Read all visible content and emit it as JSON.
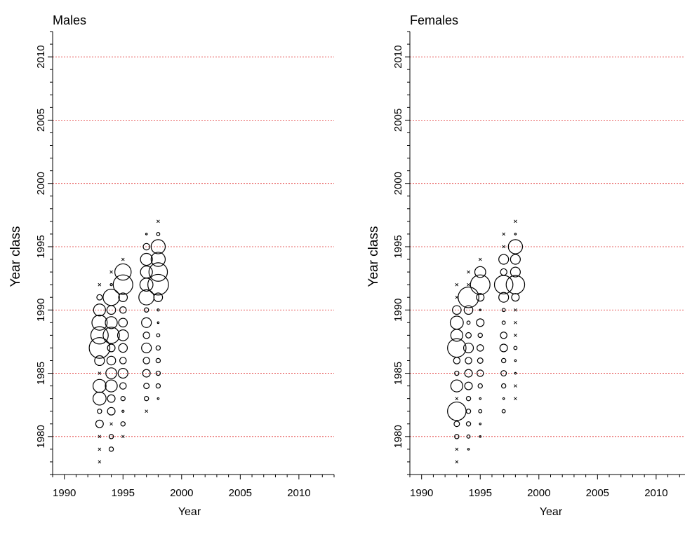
{
  "chart_data": [
    {
      "type": "scatter",
      "subtype": "bubble",
      "title": "Males",
      "xlabel": "Year",
      "ylabel": "Year class",
      "xlim": [
        1989,
        2013
      ],
      "ylim": [
        1977,
        2012
      ],
      "xticks": [
        1990,
        1995,
        2000,
        2005,
        2010
      ],
      "yticks": [
        1980,
        1985,
        1990,
        1995,
        2000,
        2005,
        2010
      ],
      "hlines": [
        1980,
        1985,
        1990,
        1995,
        2000,
        2005,
        2010
      ],
      "hline_color": "#e03030",
      "marker_note": "x = zero value",
      "points": [
        {
          "year": 1993,
          "yc": 1978,
          "size": 0
        },
        {
          "year": 1993,
          "yc": 1979,
          "size": 0
        },
        {
          "year": 1993,
          "yc": 1980,
          "size": 0
        },
        {
          "year": 1993,
          "yc": 1981,
          "size": 0.35
        },
        {
          "year": 1993,
          "yc": 1982,
          "size": 0.2
        },
        {
          "year": 1993,
          "yc": 1983,
          "size": 0.6
        },
        {
          "year": 1993,
          "yc": 1984,
          "size": 0.6
        },
        {
          "year": 1993,
          "yc": 1985,
          "size": 0
        },
        {
          "year": 1993,
          "yc": 1986,
          "size": 0.45
        },
        {
          "year": 1993,
          "yc": 1987,
          "size": 0.95
        },
        {
          "year": 1993,
          "yc": 1988,
          "size": 0.8
        },
        {
          "year": 1993,
          "yc": 1989,
          "size": 0.7
        },
        {
          "year": 1993,
          "yc": 1990,
          "size": 0.55
        },
        {
          "year": 1993,
          "yc": 1991,
          "size": 0.25
        },
        {
          "year": 1993,
          "yc": 1992,
          "size": 0
        },
        {
          "year": 1994,
          "yc": 1979,
          "size": 0.2
        },
        {
          "year": 1994,
          "yc": 1980,
          "size": 0.2
        },
        {
          "year": 1994,
          "yc": 1981,
          "size": 0
        },
        {
          "year": 1994,
          "yc": 1982,
          "size": 0.35
        },
        {
          "year": 1994,
          "yc": 1983,
          "size": 0.35
        },
        {
          "year": 1994,
          "yc": 1984,
          "size": 0.55
        },
        {
          "year": 1994,
          "yc": 1985,
          "size": 0.5
        },
        {
          "year": 1994,
          "yc": 1986,
          "size": 0.4
        },
        {
          "year": 1994,
          "yc": 1987,
          "size": 0.35
        },
        {
          "year": 1994,
          "yc": 1988,
          "size": 0.75
        },
        {
          "year": 1994,
          "yc": 1989,
          "size": 0.55
        },
        {
          "year": 1994,
          "yc": 1990,
          "size": 0.4
        },
        {
          "year": 1994,
          "yc": 1991,
          "size": 0.75
        },
        {
          "year": 1994,
          "yc": 1992,
          "size": 0.1
        },
        {
          "year": 1994,
          "yc": 1993,
          "size": 0
        },
        {
          "year": 1995,
          "yc": 1980,
          "size": 0
        },
        {
          "year": 1995,
          "yc": 1981,
          "size": 0.2
        },
        {
          "year": 1995,
          "yc": 1982,
          "size": 0.1
        },
        {
          "year": 1995,
          "yc": 1983,
          "size": 0.2
        },
        {
          "year": 1995,
          "yc": 1984,
          "size": 0.3
        },
        {
          "year": 1995,
          "yc": 1985,
          "size": 0.45
        },
        {
          "year": 1995,
          "yc": 1986,
          "size": 0.3
        },
        {
          "year": 1995,
          "yc": 1987,
          "size": 0.4
        },
        {
          "year": 1995,
          "yc": 1988,
          "size": 0.5
        },
        {
          "year": 1995,
          "yc": 1989,
          "size": 0.4
        },
        {
          "year": 1995,
          "yc": 1990,
          "size": 0.3
        },
        {
          "year": 1995,
          "yc": 1991,
          "size": 0.4
        },
        {
          "year": 1995,
          "yc": 1992,
          "size": 0.9
        },
        {
          "year": 1995,
          "yc": 1993,
          "size": 0.75
        },
        {
          "year": 1995,
          "yc": 1994,
          "size": 0
        },
        {
          "year": 1997,
          "yc": 1982,
          "size": 0
        },
        {
          "year": 1997,
          "yc": 1983,
          "size": 0.2
        },
        {
          "year": 1997,
          "yc": 1984,
          "size": 0.25
        },
        {
          "year": 1997,
          "yc": 1985,
          "size": 0.35
        },
        {
          "year": 1997,
          "yc": 1986,
          "size": 0.3
        },
        {
          "year": 1997,
          "yc": 1987,
          "size": 0.45
        },
        {
          "year": 1997,
          "yc": 1988,
          "size": 0.3
        },
        {
          "year": 1997,
          "yc": 1989,
          "size": 0.45
        },
        {
          "year": 1997,
          "yc": 1990,
          "size": 0.2
        },
        {
          "year": 1997,
          "yc": 1991,
          "size": 0.7
        },
        {
          "year": 1997,
          "yc": 1992,
          "size": 0.6
        },
        {
          "year": 1997,
          "yc": 1993,
          "size": 0.55
        },
        {
          "year": 1997,
          "yc": 1994,
          "size": 0.55
        },
        {
          "year": 1997,
          "yc": 1995,
          "size": 0.3
        },
        {
          "year": 1997,
          "yc": 1996,
          "size": 0.05
        },
        {
          "year": 1998,
          "yc": 1983,
          "size": 0.08
        },
        {
          "year": 1998,
          "yc": 1984,
          "size": 0.2
        },
        {
          "year": 1998,
          "yc": 1985,
          "size": 0.2
        },
        {
          "year": 1998,
          "yc": 1986,
          "size": 0.2
        },
        {
          "year": 1998,
          "yc": 1987,
          "size": 0.2
        },
        {
          "year": 1998,
          "yc": 1988,
          "size": 0.15
        },
        {
          "year": 1998,
          "yc": 1989,
          "size": 0.05
        },
        {
          "year": 1998,
          "yc": 1990,
          "size": 0.1
        },
        {
          "year": 1998,
          "yc": 1991,
          "size": 0.4
        },
        {
          "year": 1998,
          "yc": 1992,
          "size": 0.95
        },
        {
          "year": 1998,
          "yc": 1993,
          "size": 0.85
        },
        {
          "year": 1998,
          "yc": 1994,
          "size": 0.65
        },
        {
          "year": 1998,
          "yc": 1995,
          "size": 0.65
        },
        {
          "year": 1998,
          "yc": 1996,
          "size": 0.15
        },
        {
          "year": 1998,
          "yc": 1997,
          "size": 0
        }
      ]
    },
    {
      "type": "scatter",
      "subtype": "bubble",
      "title": "Females",
      "xlabel": "Year",
      "ylabel": "Year class",
      "xlim": [
        1989,
        2013
      ],
      "ylim": [
        1977,
        2012
      ],
      "xticks": [
        1990,
        1995,
        2000,
        2005,
        2010
      ],
      "yticks": [
        1980,
        1985,
        1990,
        1995,
        2000,
        2005,
        2010
      ],
      "hlines": [
        1980,
        1985,
        1990,
        1995,
        2000,
        2005,
        2010
      ],
      "hline_color": "#e03030",
      "marker_note": "x = zero value",
      "points": [
        {
          "year": 1993,
          "yc": 1978,
          "size": 0
        },
        {
          "year": 1993,
          "yc": 1979,
          "size": 0
        },
        {
          "year": 1993,
          "yc": 1980,
          "size": 0.2
        },
        {
          "year": 1993,
          "yc": 1981,
          "size": 0.25
        },
        {
          "year": 1993,
          "yc": 1982,
          "size": 0.85
        },
        {
          "year": 1993,
          "yc": 1983,
          "size": 0
        },
        {
          "year": 1993,
          "yc": 1984,
          "size": 0.55
        },
        {
          "year": 1993,
          "yc": 1985,
          "size": 0.2
        },
        {
          "year": 1993,
          "yc": 1986,
          "size": 0.3
        },
        {
          "year": 1993,
          "yc": 1987,
          "size": 0.85
        },
        {
          "year": 1993,
          "yc": 1988,
          "size": 0.55
        },
        {
          "year": 1993,
          "yc": 1989,
          "size": 0.6
        },
        {
          "year": 1993,
          "yc": 1990,
          "size": 0.4
        },
        {
          "year": 1993,
          "yc": 1991,
          "size": 0
        },
        {
          "year": 1993,
          "yc": 1992,
          "size": 0
        },
        {
          "year": 1994,
          "yc": 1979,
          "size": 0.05
        },
        {
          "year": 1994,
          "yc": 1980,
          "size": 0.15
        },
        {
          "year": 1994,
          "yc": 1981,
          "size": 0.2
        },
        {
          "year": 1994,
          "yc": 1982,
          "size": 0.2
        },
        {
          "year": 1994,
          "yc": 1983,
          "size": 0.2
        },
        {
          "year": 1994,
          "yc": 1984,
          "size": 0.35
        },
        {
          "year": 1994,
          "yc": 1985,
          "size": 0.35
        },
        {
          "year": 1994,
          "yc": 1986,
          "size": 0.3
        },
        {
          "year": 1994,
          "yc": 1987,
          "size": 0.45
        },
        {
          "year": 1994,
          "yc": 1988,
          "size": 0.25
        },
        {
          "year": 1994,
          "yc": 1989,
          "size": 0.15
        },
        {
          "year": 1994,
          "yc": 1990,
          "size": 0.4
        },
        {
          "year": 1994,
          "yc": 1991,
          "size": 0.95
        },
        {
          "year": 1994,
          "yc": 1992,
          "size": 0
        },
        {
          "year": 1994,
          "yc": 1993,
          "size": 0
        },
        {
          "year": 1995,
          "yc": 1980,
          "size": 0.05
        },
        {
          "year": 1995,
          "yc": 1981,
          "size": 0.05
        },
        {
          "year": 1995,
          "yc": 1982,
          "size": 0.15
        },
        {
          "year": 1995,
          "yc": 1983,
          "size": 0.05
        },
        {
          "year": 1995,
          "yc": 1984,
          "size": 0.2
        },
        {
          "year": 1995,
          "yc": 1985,
          "size": 0.3
        },
        {
          "year": 1995,
          "yc": 1986,
          "size": 0.25
        },
        {
          "year": 1995,
          "yc": 1987,
          "size": 0.3
        },
        {
          "year": 1995,
          "yc": 1988,
          "size": 0.2
        },
        {
          "year": 1995,
          "yc": 1989,
          "size": 0.35
        },
        {
          "year": 1995,
          "yc": 1990,
          "size": 0.05
        },
        {
          "year": 1995,
          "yc": 1991,
          "size": 0.35
        },
        {
          "year": 1995,
          "yc": 1992,
          "size": 0.9
        },
        {
          "year": 1995,
          "yc": 1993,
          "size": 0.5
        },
        {
          "year": 1995,
          "yc": 1994,
          "size": 0
        },
        {
          "year": 1997,
          "yc": 1982,
          "size": 0.15
        },
        {
          "year": 1997,
          "yc": 1983,
          "size": 0.05
        },
        {
          "year": 1997,
          "yc": 1984,
          "size": 0.2
        },
        {
          "year": 1997,
          "yc": 1985,
          "size": 0.25
        },
        {
          "year": 1997,
          "yc": 1986,
          "size": 0.2
        },
        {
          "year": 1997,
          "yc": 1987,
          "size": 0.35
        },
        {
          "year": 1997,
          "yc": 1988,
          "size": 0.3
        },
        {
          "year": 1997,
          "yc": 1989,
          "size": 0.15
        },
        {
          "year": 1997,
          "yc": 1990,
          "size": 0.15
        },
        {
          "year": 1997,
          "yc": 1991,
          "size": 0.45
        },
        {
          "year": 1997,
          "yc": 1992,
          "size": 0.85
        },
        {
          "year": 1997,
          "yc": 1993,
          "size": 0.3
        },
        {
          "year": 1997,
          "yc": 1994,
          "size": 0.45
        },
        {
          "year": 1997,
          "yc": 1995,
          "size": 0
        },
        {
          "year": 1997,
          "yc": 1996,
          "size": 0
        },
        {
          "year": 1998,
          "yc": 1983,
          "size": 0
        },
        {
          "year": 1998,
          "yc": 1984,
          "size": 0
        },
        {
          "year": 1998,
          "yc": 1985,
          "size": 0.03
        },
        {
          "year": 1998,
          "yc": 1986,
          "size": 0.03
        },
        {
          "year": 1998,
          "yc": 1987,
          "size": 0.15
        },
        {
          "year": 1998,
          "yc": 1988,
          "size": 0
        },
        {
          "year": 1998,
          "yc": 1989,
          "size": 0
        },
        {
          "year": 1998,
          "yc": 1990,
          "size": 0
        },
        {
          "year": 1998,
          "yc": 1991,
          "size": 0.35
        },
        {
          "year": 1998,
          "yc": 1992,
          "size": 0.85
        },
        {
          "year": 1998,
          "yc": 1993,
          "size": 0.45
        },
        {
          "year": 1998,
          "yc": 1994,
          "size": 0.45
        },
        {
          "year": 1998,
          "yc": 1995,
          "size": 0.65
        },
        {
          "year": 1998,
          "yc": 1996,
          "size": 0.05
        },
        {
          "year": 1998,
          "yc": 1997,
          "size": 0
        }
      ]
    }
  ]
}
